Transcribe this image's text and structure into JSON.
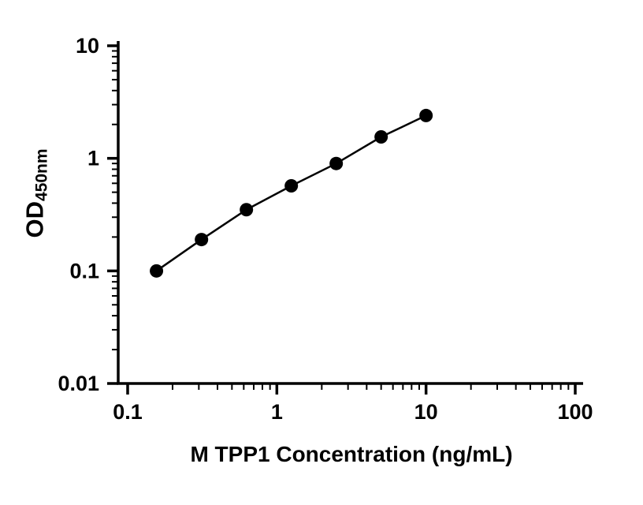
{
  "chart_data": {
    "type": "scatter",
    "x": [
      0.156,
      0.3125,
      0.625,
      1.25,
      2.5,
      5,
      10
    ],
    "y": [
      0.1,
      0.19,
      0.35,
      0.57,
      0.9,
      1.55,
      2.4
    ],
    "xlabel": "M TPP1 Concentration (ng/mL)",
    "ylabel_main": "OD",
    "ylabel_sub": "450nm",
    "x_scale": "log",
    "y_scale": "log",
    "xlim": [
      0.1,
      100
    ],
    "ylim": [
      0.01,
      10
    ],
    "x_tick_values": [
      0.1,
      1,
      10,
      100
    ],
    "x_tick_labels": [
      "0.1",
      "1",
      "10",
      "100"
    ],
    "y_tick_values": [
      10,
      1,
      0.1,
      0.01
    ],
    "y_tick_labels": [
      "10",
      "1",
      "0.1",
      "0.01"
    ],
    "grid": false,
    "legend": false,
    "line_color": "#000000",
    "marker_color": "#000000",
    "axis_color": "#000000",
    "background": "#ffffff"
  }
}
